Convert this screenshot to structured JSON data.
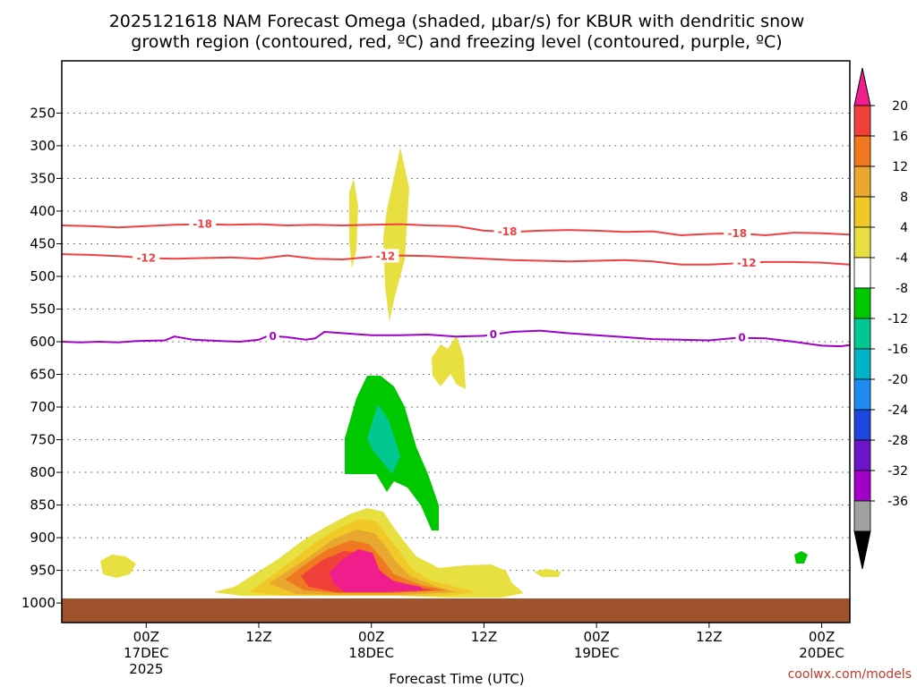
{
  "chart_data": {
    "type": "time-height contour",
    "title_line1": "2025121618 NAM Forecast Omega (shaded, μbar/s) for KBUR with dendritic snow",
    "title_line2": "growth region (contoured, red, ºC) and freezing level (contoured, purple, ºC)",
    "xlabel": "Forecast Time (UTC)",
    "credit": "coolwx.com/models",
    "x_range_hours": [
      -9,
      75
    ],
    "y_range_hpa": [
      170,
      1030
    ],
    "y_ticks": [
      250,
      300,
      350,
      400,
      450,
      500,
      550,
      600,
      650,
      700,
      750,
      800,
      850,
      900,
      950,
      1000
    ],
    "x_ticks": [
      {
        "hour": 0,
        "line1": "00Z",
        "line2": "17DEC",
        "line3": "2025"
      },
      {
        "hour": 12,
        "line1": "12Z",
        "line2": "",
        "line3": ""
      },
      {
        "hour": 24,
        "line1": "00Z",
        "line2": "18DEC",
        "line3": ""
      },
      {
        "hour": 36,
        "line1": "12Z",
        "line2": "",
        "line3": ""
      },
      {
        "hour": 48,
        "line1": "00Z",
        "line2": "19DEC",
        "line3": ""
      },
      {
        "hour": 60,
        "line1": "12Z",
        "line2": "",
        "line3": ""
      },
      {
        "hour": 72,
        "line1": "00Z",
        "line2": "20DEC",
        "line3": ""
      }
    ],
    "ground_pressure_hpa": 975,
    "colorbar_labels": [
      "20",
      "16",
      "12",
      "8",
      "4",
      "-4",
      "-8",
      "-12",
      "-16",
      "-20",
      "-24",
      "-28",
      "-32",
      "-36"
    ],
    "colorbar_colors": [
      "#f0403a",
      "#f07820",
      "#e8a830",
      "#f0c828",
      "#e8e040",
      "#ffffff",
      "#00c800",
      "#00c890",
      "#00b4c8",
      "#1e8cf0",
      "#1e46dc",
      "#6e14c8",
      "#a000c8",
      "#a0a0a0"
    ],
    "colorbar_top_arrow_color": "#f01e8c",
    "colorbar_bottom_arrow_color": "#000000",
    "contours": [
      {
        "name": "-18C",
        "color": "#f04040",
        "labels": [
          {
            "text": "-18",
            "hour": 6
          },
          {
            "text": "-18",
            "hour": 38.5
          },
          {
            "text": "-18",
            "hour": 63
          }
        ],
        "points": [
          [
            -9,
            422
          ],
          [
            -6,
            423
          ],
          [
            -3,
            425
          ],
          [
            0,
            423
          ],
          [
            3,
            421
          ],
          [
            6,
            420
          ],
          [
            9,
            421
          ],
          [
            12,
            420
          ],
          [
            15,
            422
          ],
          [
            18,
            421
          ],
          [
            21,
            422
          ],
          [
            24,
            421
          ],
          [
            27,
            420
          ],
          [
            30,
            422
          ],
          [
            33,
            423
          ],
          [
            36,
            430
          ],
          [
            39,
            432
          ],
          [
            42,
            430
          ],
          [
            45,
            429
          ],
          [
            48,
            430
          ],
          [
            51,
            432
          ],
          [
            54,
            431
          ],
          [
            57,
            437
          ],
          [
            60,
            435
          ],
          [
            63,
            434
          ],
          [
            66,
            437
          ],
          [
            69,
            433
          ],
          [
            72,
            434
          ],
          [
            75,
            436
          ]
        ]
      },
      {
        "name": "-12C",
        "color": "#f04040",
        "labels": [
          {
            "text": "-12",
            "hour": 0
          },
          {
            "text": "-12",
            "hour": 25.5
          },
          {
            "text": "-12",
            "hour": 64
          }
        ],
        "points": [
          [
            -9,
            466
          ],
          [
            -6,
            467
          ],
          [
            -3,
            469
          ],
          [
            0,
            472
          ],
          [
            3,
            473
          ],
          [
            6,
            472
          ],
          [
            9,
            471
          ],
          [
            12,
            473
          ],
          [
            15,
            468
          ],
          [
            18,
            473
          ],
          [
            21,
            474
          ],
          [
            24,
            470
          ],
          [
            27,
            468
          ],
          [
            30,
            469
          ],
          [
            33,
            471
          ],
          [
            36,
            473
          ],
          [
            39,
            475
          ],
          [
            42,
            476
          ],
          [
            45,
            477
          ],
          [
            48,
            476
          ],
          [
            51,
            475
          ],
          [
            54,
            477
          ],
          [
            57,
            482
          ],
          [
            60,
            482
          ],
          [
            63,
            480
          ],
          [
            66,
            478
          ],
          [
            69,
            478
          ],
          [
            72,
            479
          ],
          [
            75,
            482
          ]
        ]
      },
      {
        "name": "0C",
        "color": "#a000c8",
        "labels": [
          {
            "text": "0",
            "hour": 13.5
          },
          {
            "text": "0",
            "hour": 37
          },
          {
            "text": "0",
            "hour": 63.5
          }
        ],
        "points": [
          [
            -9,
            600
          ],
          [
            -7,
            601
          ],
          [
            -5,
            600
          ],
          [
            -3,
            601
          ],
          [
            -1,
            599
          ],
          [
            2,
            598
          ],
          [
            3,
            592
          ],
          [
            5,
            597
          ],
          [
            8,
            599
          ],
          [
            10,
            600
          ],
          [
            12,
            597
          ],
          [
            13,
            591
          ],
          [
            15,
            593
          ],
          [
            17,
            597
          ],
          [
            18,
            595
          ],
          [
            19,
            585
          ],
          [
            21,
            587
          ],
          [
            24,
            590
          ],
          [
            27,
            590
          ],
          [
            30,
            589
          ],
          [
            33,
            592
          ],
          [
            36,
            591
          ],
          [
            39,
            585
          ],
          [
            42,
            583
          ],
          [
            45,
            587
          ],
          [
            48,
            590
          ],
          [
            51,
            593
          ],
          [
            54,
            596
          ],
          [
            57,
            597
          ],
          [
            60,
            598
          ],
          [
            63,
            594
          ],
          [
            66,
            595
          ],
          [
            69,
            600
          ],
          [
            72,
            606
          ],
          [
            74,
            607
          ],
          [
            75,
            605
          ]
        ]
      }
    ]
  }
}
